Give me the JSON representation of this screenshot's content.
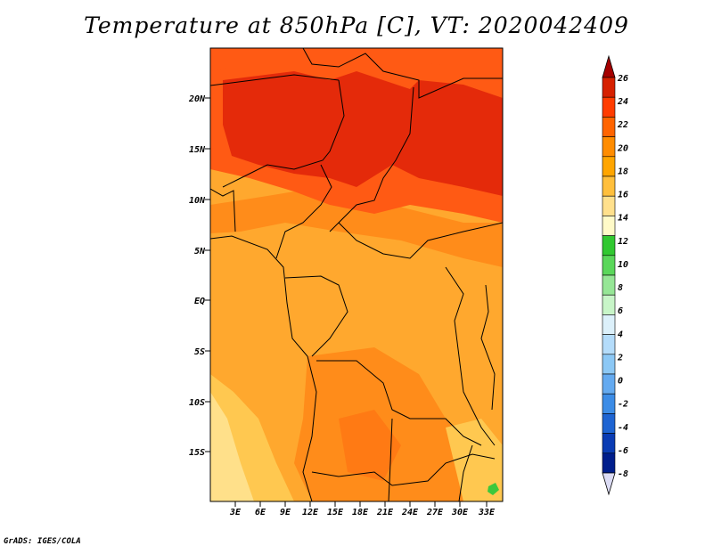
{
  "title": "Temperature at 850hPa [C], VT: 2020042409",
  "credit": "GrADS: IGES/COLA",
  "lat_labels": [
    "20N",
    "15N",
    "10N",
    "5N",
    "EQ",
    "5S",
    "10S",
    "15S"
  ],
  "lon_labels": [
    "3E",
    "6E",
    "9E",
    "12E",
    "15E",
    "18E",
    "21E",
    "24E",
    "27E",
    "30E",
    "33E"
  ],
  "colorbar": {
    "labels": [
      "26",
      "24",
      "22",
      "20",
      "18",
      "16",
      "14",
      "12",
      "10",
      "8",
      "6",
      "4",
      "2",
      "0",
      "-2",
      "-4",
      "-6",
      "-8"
    ],
    "colors": [
      "#a50000",
      "#d62000",
      "#ff3c00",
      "#ff6400",
      "#ff8c00",
      "#ffa500",
      "#ffbf3c",
      "#ffe08c",
      "#fffac8",
      "#31c831",
      "#5ad75a",
      "#96e696",
      "#c8f5c8",
      "#dcf0fa",
      "#b4dcfa",
      "#8cc8f5",
      "#64aaf0",
      "#3c8ce6",
      "#1e64d2",
      "#0a3cb4",
      "#001e8c",
      "#000a64"
    ]
  },
  "colors": {
    "hot": "#e42a0a",
    "warm": "#ff5a14",
    "orange": "#ff8c1a",
    "lightorange": "#ffa82e",
    "yellow": "#ffc850",
    "paleyellow": "#ffe08a",
    "green": "#3cc83c"
  }
}
